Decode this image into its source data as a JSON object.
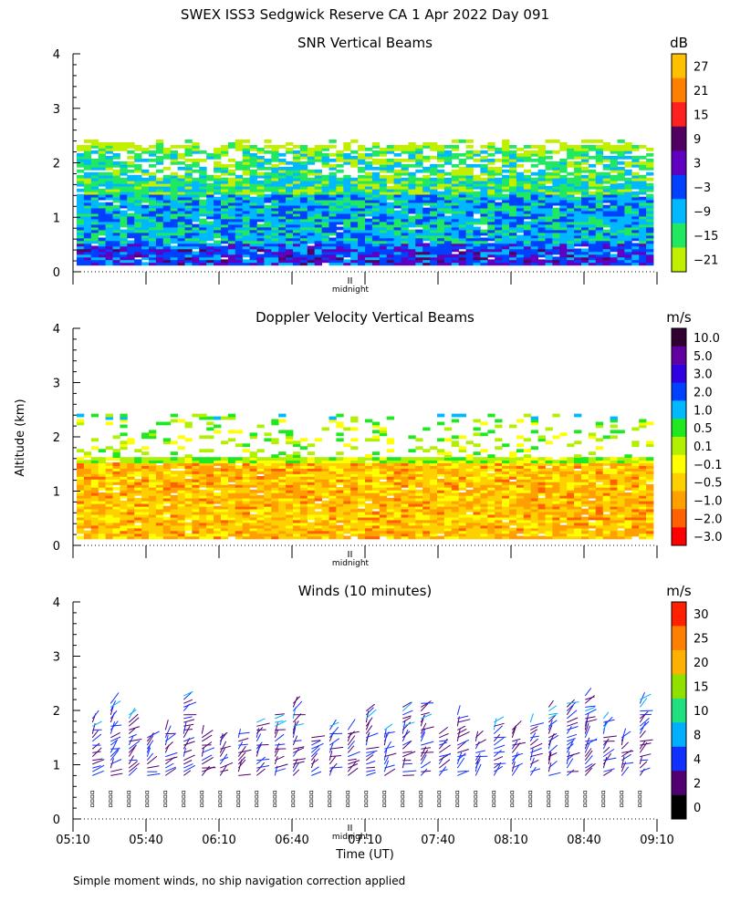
{
  "page": {
    "title": "SWEX ISS3 Sedgwick Reserve CA    1 Apr 2022 Day 091",
    "ylabel": "Altitude (km)",
    "xlabel": "Time (UT)",
    "footnote": "Simple moment winds, no ship navigation correction applied",
    "midnight_label": "midnight"
  },
  "chart_data": [
    {
      "type": "heatmap",
      "title": "SNR Vertical Beams",
      "ylabel": "Altitude (km)",
      "ylim": [
        0,
        4
      ],
      "yticks": [
        "0",
        "1",
        "2",
        "3",
        "4"
      ],
      "x_range_minutes": [
        310,
        550
      ],
      "colorbar": {
        "unit": "dB",
        "labels": [
          "27",
          "21",
          "15",
          "9",
          "3",
          "−3",
          "−9",
          "−15",
          "−21"
        ],
        "colors": [
          "#FFC000",
          "#FF8000",
          "#FF2020",
          "#500060",
          "#6000C0",
          "#0040FF",
          "#00B8FF",
          "#20E860",
          "#C0F000"
        ]
      }
    },
    {
      "type": "heatmap",
      "title": "Doppler Velocity Vertical Beams",
      "ylabel": "Altitude (km)",
      "ylim": [
        0,
        4
      ],
      "yticks": [
        "0",
        "1",
        "2",
        "3",
        "4"
      ],
      "x_range_minutes": [
        310,
        550
      ],
      "colorbar": {
        "unit": "m/s",
        "labels": [
          "10.0",
          "5.0",
          "3.0",
          "2.0",
          "1.0",
          "0.5",
          "0.1",
          "−0.1",
          "−0.5",
          "−1.0",
          "−2.0",
          "−3.0"
        ],
        "colors": [
          "#300030",
          "#6000A0",
          "#3000E0",
          "#0040FF",
          "#00B8FF",
          "#20E820",
          "#B0F000",
          "#FFFF00",
          "#FFD000",
          "#FFA000",
          "#FF6000",
          "#FF0000"
        ]
      }
    },
    {
      "type": "scatter",
      "title": "Winds (10 minutes)",
      "ylabel": "Altitude (km)",
      "xlabel": "Time (UT)",
      "ylim": [
        0,
        4
      ],
      "yticks": [
        "0",
        "1",
        "2",
        "3",
        "4"
      ],
      "x_range_minutes": [
        310,
        550
      ],
      "xticks": [
        "05:10",
        "05:40",
        "06:10",
        "06:40",
        "07:10",
        "07:40",
        "08:10",
        "08:40",
        "09:10"
      ],
      "colorbar": {
        "unit": "m/s",
        "labels": [
          "30",
          "25",
          "20",
          "15",
          "10",
          "8",
          "4",
          "2",
          "0"
        ],
        "colors": [
          "#FF2000",
          "#FF8000",
          "#FFB000",
          "#90E000",
          "#20E080",
          "#00B0FF",
          "#1030FF",
          "#500070",
          "#000000"
        ]
      }
    }
  ]
}
